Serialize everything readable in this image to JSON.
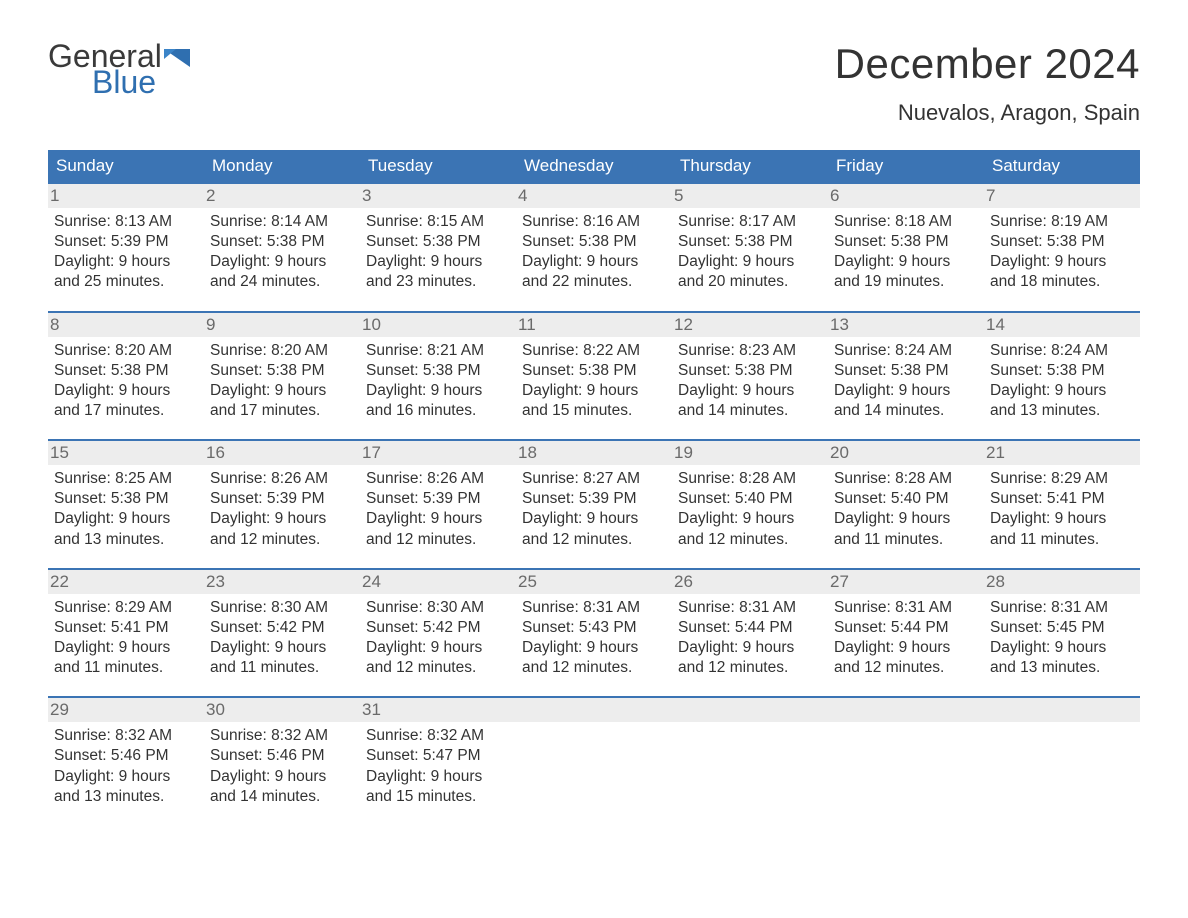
{
  "brand": {
    "text_general": "General",
    "text_blue": "Blue"
  },
  "header": {
    "month_title": "December 2024",
    "location": "Nuevalos, Aragon, Spain"
  },
  "colors": {
    "accent": "#3b74b4",
    "header_text": "#ffffff",
    "day_num_bg": "#ededed",
    "day_num_fg": "#6a6a6a",
    "body_text": "#333333",
    "logo_blue": "#2f6fb0",
    "background": "#ffffff"
  },
  "typography": {
    "month_title_fontsize": 42,
    "location_fontsize": 22,
    "dow_fontsize": 17,
    "day_body_fontsize": 15.5,
    "logo_fontsize": 32
  },
  "calendar": {
    "type": "calendar-grid",
    "columns": 7,
    "days_of_week": [
      "Sunday",
      "Monday",
      "Tuesday",
      "Wednesday",
      "Thursday",
      "Friday",
      "Saturday"
    ],
    "weeks": [
      [
        {
          "n": "1",
          "sr": "Sunrise: 8:13 AM",
          "ss": "Sunset: 5:39 PM",
          "d1": "Daylight: 9 hours",
          "d2": "and 25 minutes."
        },
        {
          "n": "2",
          "sr": "Sunrise: 8:14 AM",
          "ss": "Sunset: 5:38 PM",
          "d1": "Daylight: 9 hours",
          "d2": "and 24 minutes."
        },
        {
          "n": "3",
          "sr": "Sunrise: 8:15 AM",
          "ss": "Sunset: 5:38 PM",
          "d1": "Daylight: 9 hours",
          "d2": "and 23 minutes."
        },
        {
          "n": "4",
          "sr": "Sunrise: 8:16 AM",
          "ss": "Sunset: 5:38 PM",
          "d1": "Daylight: 9 hours",
          "d2": "and 22 minutes."
        },
        {
          "n": "5",
          "sr": "Sunrise: 8:17 AM",
          "ss": "Sunset: 5:38 PM",
          "d1": "Daylight: 9 hours",
          "d2": "and 20 minutes."
        },
        {
          "n": "6",
          "sr": "Sunrise: 8:18 AM",
          "ss": "Sunset: 5:38 PM",
          "d1": "Daylight: 9 hours",
          "d2": "and 19 minutes."
        },
        {
          "n": "7",
          "sr": "Sunrise: 8:19 AM",
          "ss": "Sunset: 5:38 PM",
          "d1": "Daylight: 9 hours",
          "d2": "and 18 minutes."
        }
      ],
      [
        {
          "n": "8",
          "sr": "Sunrise: 8:20 AM",
          "ss": "Sunset: 5:38 PM",
          "d1": "Daylight: 9 hours",
          "d2": "and 17 minutes."
        },
        {
          "n": "9",
          "sr": "Sunrise: 8:20 AM",
          "ss": "Sunset: 5:38 PM",
          "d1": "Daylight: 9 hours",
          "d2": "and 17 minutes."
        },
        {
          "n": "10",
          "sr": "Sunrise: 8:21 AM",
          "ss": "Sunset: 5:38 PM",
          "d1": "Daylight: 9 hours",
          "d2": "and 16 minutes."
        },
        {
          "n": "11",
          "sr": "Sunrise: 8:22 AM",
          "ss": "Sunset: 5:38 PM",
          "d1": "Daylight: 9 hours",
          "d2": "and 15 minutes."
        },
        {
          "n": "12",
          "sr": "Sunrise: 8:23 AM",
          "ss": "Sunset: 5:38 PM",
          "d1": "Daylight: 9 hours",
          "d2": "and 14 minutes."
        },
        {
          "n": "13",
          "sr": "Sunrise: 8:24 AM",
          "ss": "Sunset: 5:38 PM",
          "d1": "Daylight: 9 hours",
          "d2": "and 14 minutes."
        },
        {
          "n": "14",
          "sr": "Sunrise: 8:24 AM",
          "ss": "Sunset: 5:38 PM",
          "d1": "Daylight: 9 hours",
          "d2": "and 13 minutes."
        }
      ],
      [
        {
          "n": "15",
          "sr": "Sunrise: 8:25 AM",
          "ss": "Sunset: 5:38 PM",
          "d1": "Daylight: 9 hours",
          "d2": "and 13 minutes."
        },
        {
          "n": "16",
          "sr": "Sunrise: 8:26 AM",
          "ss": "Sunset: 5:39 PM",
          "d1": "Daylight: 9 hours",
          "d2": "and 12 minutes."
        },
        {
          "n": "17",
          "sr": "Sunrise: 8:26 AM",
          "ss": "Sunset: 5:39 PM",
          "d1": "Daylight: 9 hours",
          "d2": "and 12 minutes."
        },
        {
          "n": "18",
          "sr": "Sunrise: 8:27 AM",
          "ss": "Sunset: 5:39 PM",
          "d1": "Daylight: 9 hours",
          "d2": "and 12 minutes."
        },
        {
          "n": "19",
          "sr": "Sunrise: 8:28 AM",
          "ss": "Sunset: 5:40 PM",
          "d1": "Daylight: 9 hours",
          "d2": "and 12 minutes."
        },
        {
          "n": "20",
          "sr": "Sunrise: 8:28 AM",
          "ss": "Sunset: 5:40 PM",
          "d1": "Daylight: 9 hours",
          "d2": "and 11 minutes."
        },
        {
          "n": "21",
          "sr": "Sunrise: 8:29 AM",
          "ss": "Sunset: 5:41 PM",
          "d1": "Daylight: 9 hours",
          "d2": "and 11 minutes."
        }
      ],
      [
        {
          "n": "22",
          "sr": "Sunrise: 8:29 AM",
          "ss": "Sunset: 5:41 PM",
          "d1": "Daylight: 9 hours",
          "d2": "and 11 minutes."
        },
        {
          "n": "23",
          "sr": "Sunrise: 8:30 AM",
          "ss": "Sunset: 5:42 PM",
          "d1": "Daylight: 9 hours",
          "d2": "and 11 minutes."
        },
        {
          "n": "24",
          "sr": "Sunrise: 8:30 AM",
          "ss": "Sunset: 5:42 PM",
          "d1": "Daylight: 9 hours",
          "d2": "and 12 minutes."
        },
        {
          "n": "25",
          "sr": "Sunrise: 8:31 AM",
          "ss": "Sunset: 5:43 PM",
          "d1": "Daylight: 9 hours",
          "d2": "and 12 minutes."
        },
        {
          "n": "26",
          "sr": "Sunrise: 8:31 AM",
          "ss": "Sunset: 5:44 PM",
          "d1": "Daylight: 9 hours",
          "d2": "and 12 minutes."
        },
        {
          "n": "27",
          "sr": "Sunrise: 8:31 AM",
          "ss": "Sunset: 5:44 PM",
          "d1": "Daylight: 9 hours",
          "d2": "and 12 minutes."
        },
        {
          "n": "28",
          "sr": "Sunrise: 8:31 AM",
          "ss": "Sunset: 5:45 PM",
          "d1": "Daylight: 9 hours",
          "d2": "and 13 minutes."
        }
      ],
      [
        {
          "n": "29",
          "sr": "Sunrise: 8:32 AM",
          "ss": "Sunset: 5:46 PM",
          "d1": "Daylight: 9 hours",
          "d2": "and 13 minutes."
        },
        {
          "n": "30",
          "sr": "Sunrise: 8:32 AM",
          "ss": "Sunset: 5:46 PM",
          "d1": "Daylight: 9 hours",
          "d2": "and 14 minutes."
        },
        {
          "n": "31",
          "sr": "Sunrise: 8:32 AM",
          "ss": "Sunset: 5:47 PM",
          "d1": "Daylight: 9 hours",
          "d2": "and 15 minutes."
        },
        null,
        null,
        null,
        null
      ]
    ]
  }
}
